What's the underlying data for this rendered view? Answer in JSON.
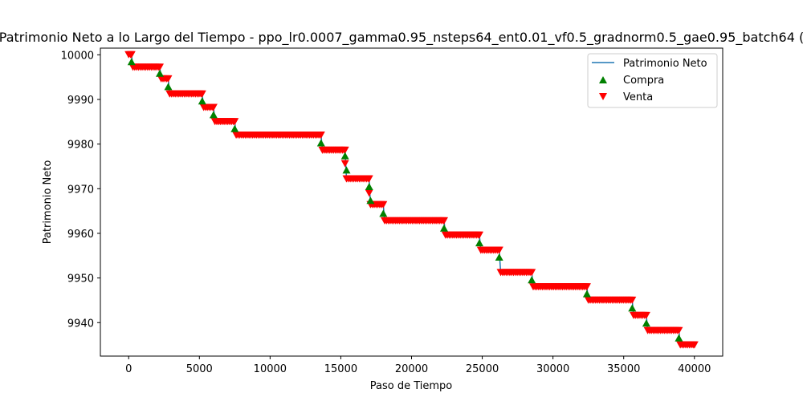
{
  "chart_data": {
    "type": "line",
    "title": "Patrimonio Neto a lo Largo del Tiempo - ppo_lr0.0007_gamma0.95_nsteps64_ent0.01_vf0.5_gradnorm0.5_gae0.95_batch64 (",
    "xlabel": "Paso de Tiempo",
    "ylabel": "Patrimonio Neto",
    "xlim": [
      -2000,
      42000
    ],
    "ylim": [
      9932.5,
      10001.5
    ],
    "xticks": [
      0,
      5000,
      10000,
      15000,
      20000,
      25000,
      30000,
      35000,
      40000
    ],
    "yticks": [
      9940,
      9950,
      9960,
      9970,
      9980,
      9990,
      10000
    ],
    "grid": false,
    "legend_position": "top-right",
    "legend": [
      "Patrimonio Neto",
      "Compra",
      "Venta"
    ],
    "colors": {
      "line": "#1f77b4",
      "buy": "#008000",
      "sell": "#ff0000"
    },
    "series": [
      {
        "name": "Patrimonio Neto",
        "x": [
          0,
          200,
          300,
          2200,
          2300,
          2800,
          2900,
          5200,
          5300,
          6000,
          6100,
          7500,
          7600,
          13600,
          13700,
          15300,
          15400,
          17000,
          17100,
          18000,
          18100,
          22300,
          22400,
          24800,
          24900,
          26200,
          26300,
          28500,
          28600,
          32400,
          32500,
          35600,
          35700,
          36600,
          36700,
          38900,
          39000,
          40000
        ],
        "y": [
          10000,
          10000,
          9997.2,
          9997.2,
          9994.6,
          9994.6,
          9991.2,
          9991.2,
          9988.2,
          9988.2,
          9985,
          9985,
          9982,
          9982,
          9978.6,
          9978.6,
          9972.2,
          9972.2,
          9966.4,
          9966.4,
          9962.8,
          9962.8,
          9959.6,
          9959.6,
          9956.2,
          9956.2,
          9951.2,
          9951.2,
          9948,
          9948,
          9945,
          9945,
          9941.6,
          9941.6,
          9938.2,
          9938.2,
          9935,
          9935
        ]
      }
    ],
    "buy_points": {
      "name": "Compra",
      "x": [
        200,
        2200,
        2800,
        5200,
        6000,
        7500,
        13600,
        15300,
        15400,
        17000,
        17100,
        18000,
        22300,
        24800,
        26200,
        28500,
        32400,
        35600,
        36600,
        38900
      ],
      "y": [
        9998.5,
        9995.9,
        9992.9,
        9989.7,
        9986.6,
        9983.5,
        9980.3,
        9977.4,
        9974.2,
        9970.5,
        9967.4,
        9964.5,
        9961.2,
        9957.9,
        9954.7,
        9949.6,
        9946.5,
        9943.3,
        9939.9,
        9936.6
      ]
    },
    "sell_segments": {
      "name": "Venta",
      "segments": [
        {
          "x0": 0,
          "x1": 200,
          "y": 10000
        },
        {
          "x0": 300,
          "x1": 2200,
          "y": 9997.2
        },
        {
          "x0": 2300,
          "x1": 2800,
          "y": 9994.6
        },
        {
          "x0": 2900,
          "x1": 5200,
          "y": 9991.2
        },
        {
          "x0": 5300,
          "x1": 6000,
          "y": 9988.2
        },
        {
          "x0": 6100,
          "x1": 7500,
          "y": 9985
        },
        {
          "x0": 7600,
          "x1": 13600,
          "y": 9982
        },
        {
          "x0": 13700,
          "x1": 15300,
          "y": 9978.6
        },
        {
          "x0": 15400,
          "x1": 17000,
          "y": 9972.2
        },
        {
          "x0": 17100,
          "x1": 18000,
          "y": 9966.4
        },
        {
          "x0": 18100,
          "x1": 22300,
          "y": 9962.8
        },
        {
          "x0": 22400,
          "x1": 24800,
          "y": 9959.6
        },
        {
          "x0": 24900,
          "x1": 26200,
          "y": 9956.2
        },
        {
          "x0": 26300,
          "x1": 28500,
          "y": 9951.2
        },
        {
          "x0": 28600,
          "x1": 32400,
          "y": 9948
        },
        {
          "x0": 32500,
          "x1": 35600,
          "y": 9945
        },
        {
          "x0": 35700,
          "x1": 36600,
          "y": 9941.6
        },
        {
          "x0": 36700,
          "x1": 38900,
          "y": 9938.2
        },
        {
          "x0": 39000,
          "x1": 40000,
          "y": 9935
        }
      ],
      "extra_points": [
        {
          "x": 15300,
          "y": 9975.6
        },
        {
          "x": 17000,
          "y": 9969.0
        }
      ]
    }
  }
}
